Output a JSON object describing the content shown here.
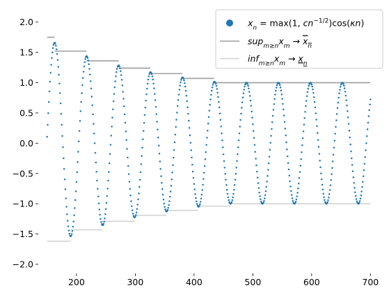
{
  "chart_data": {
    "type": "scatter",
    "xlim": [
      135,
      715
    ],
    "ylim": [
      -2.15,
      2.25
    ],
    "grid": false,
    "legend_position": "top-right",
    "x_ticks": [
      200,
      300,
      400,
      500,
      600,
      700
    ],
    "x_tick_labels": [
      "200",
      "300",
      "400",
      "500",
      "600",
      "700"
    ],
    "y_ticks": [
      2.0,
      1.5,
      1.0,
      0.5,
      0.0,
      -0.5,
      -1.0,
      -1.5,
      -2.0
    ],
    "y_tick_labels": [
      "2.0",
      "1.5",
      "1.0",
      "0.5",
      "0.0",
      "−0.5",
      "−1.0",
      "−1.5",
      "−2.0"
    ],
    "points_sequence": {
      "x_start": 150,
      "x_end": 700,
      "step": 1,
      "c": 21.2,
      "kappa": 0.1156,
      "color": "#1f77b4"
    },
    "sup_steps": {
      "color": "#9e9e9e",
      "segments": [
        {
          "x0": 150,
          "x1": 163,
          "y": 1.75
        },
        {
          "x0": 163,
          "x1": 217,
          "y": 1.52
        },
        {
          "x0": 217,
          "x1": 272,
          "y": 1.36
        },
        {
          "x0": 272,
          "x1": 326,
          "y": 1.24
        },
        {
          "x0": 326,
          "x1": 380,
          "y": 1.15
        },
        {
          "x0": 380,
          "x1": 434,
          "y": 1.07
        },
        {
          "x0": 434,
          "x1": 489,
          "y": 1.0
        },
        {
          "x0": 489,
          "x1": 700,
          "y": 1.0
        }
      ]
    },
    "inf_steps": {
      "color": "#d3d3d3",
      "segments": [
        {
          "x0": 150,
          "x1": 190,
          "y": -1.62
        },
        {
          "x0": 190,
          "x1": 244,
          "y": -1.43
        },
        {
          "x0": 244,
          "x1": 299,
          "y": -1.29
        },
        {
          "x0": 299,
          "x1": 353,
          "y": -1.19
        },
        {
          "x0": 353,
          "x1": 407,
          "y": -1.11
        },
        {
          "x0": 407,
          "x1": 462,
          "y": -1.04
        },
        {
          "x0": 462,
          "x1": 700,
          "y": -1.0
        }
      ]
    },
    "legend": {
      "entries": [
        {
          "label": "x_n = max(1, cn^{-1/2})cos(κn)",
          "marker": "dot",
          "color": "#1f77b4"
        },
        {
          "label": "sup_{m≥n} x_m → limsup x_n",
          "marker": "line",
          "color": "#9e9e9e"
        },
        {
          "label": "inf_{m≥n} x_m → liminf x_n",
          "marker": "line",
          "color": "#d3d3d3"
        }
      ]
    }
  }
}
